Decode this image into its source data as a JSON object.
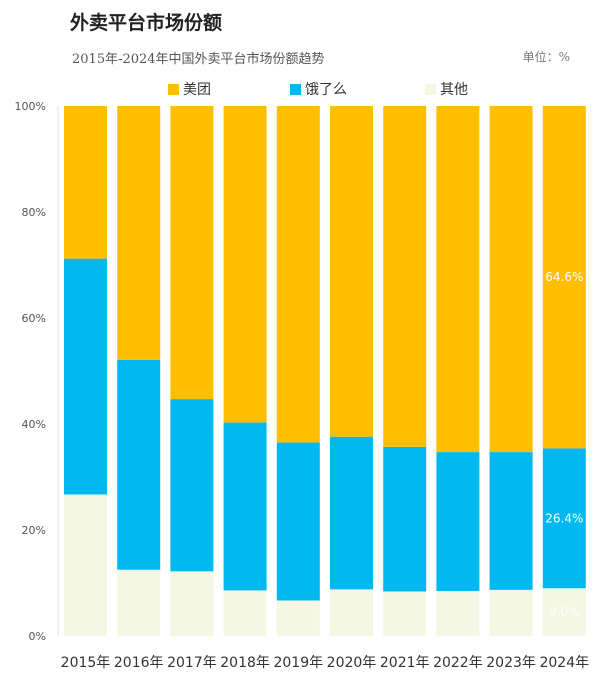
{
  "title": "外卖平台市场份额",
  "subtitle": "2015年-2024年中国外卖平台市场份额趋势",
  "unit": "单位：%",
  "chart_data": {
    "type": "bar",
    "stacked": true,
    "categories": [
      "2015年",
      "2016年",
      "2017年",
      "2018年",
      "2019年",
      "2020年",
      "2021年",
      "2022年",
      "2023年",
      "2024年"
    ],
    "series": [
      {
        "name": "其他",
        "color": "#f3f7e4",
        "values": [
          26.7,
          12.5,
          12.2,
          8.6,
          6.7,
          8.8,
          8.4,
          8.5,
          8.7,
          9.0
        ]
      },
      {
        "name": "饿了么",
        "color": "#00b8f0",
        "values": [
          44.5,
          39.6,
          32.5,
          31.7,
          29.8,
          28.8,
          27.3,
          26.2,
          26.0,
          26.4
        ]
      },
      {
        "name": "美团",
        "color": "#ffbf00",
        "values": [
          28.8,
          47.9,
          55.3,
          59.7,
          63.5,
          62.4,
          64.3,
          65.3,
          65.3,
          64.6
        ]
      }
    ],
    "legend_order": [
      "美团",
      "饿了么",
      "其他"
    ],
    "legend_position": "top",
    "y_ticks": [
      "0%",
      "20%",
      "40%",
      "60%",
      "80%",
      "100%"
    ],
    "ylim": [
      0,
      100
    ],
    "data_labels": [
      {
        "series": "美团",
        "category": "2024年",
        "text": "64.6%"
      },
      {
        "series": "饿了么",
        "category": "2024年",
        "text": "26.4%"
      },
      {
        "series": "其他",
        "category": "2024年",
        "text": "9.0%"
      }
    ],
    "grid": false
  }
}
